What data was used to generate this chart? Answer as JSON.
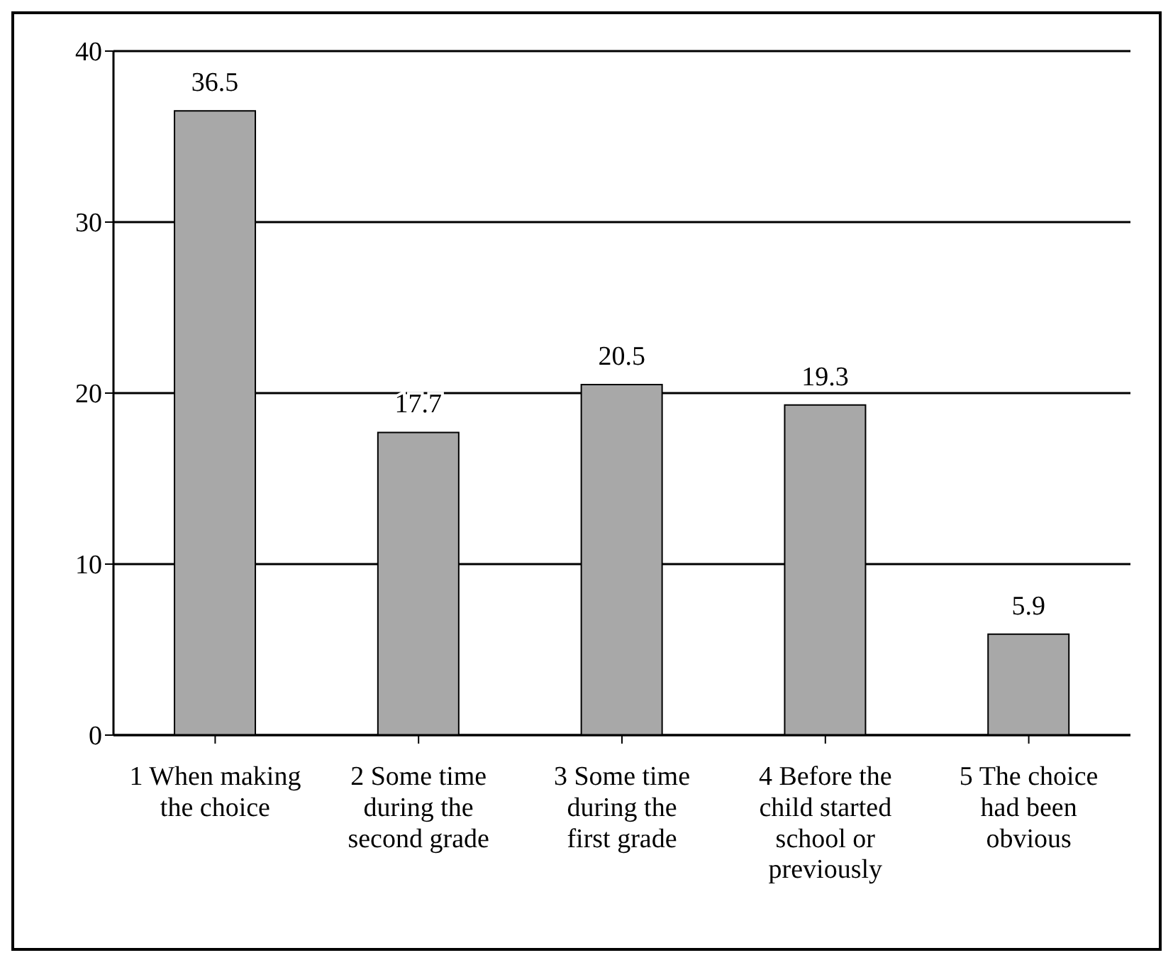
{
  "chart_data": {
    "type": "bar",
    "categories": [
      "1 When making the choice",
      "2 Some time during the second grade",
      "3 Some time during the first grade",
      "4 Before the child started school or previously",
      "5 The choice had been obvious"
    ],
    "values": [
      36.5,
      17.7,
      20.5,
      19.3,
      5.9
    ],
    "color": "#a8a8a8",
    "ylim": [
      0,
      40
    ],
    "yticks": [
      0,
      10,
      20,
      30,
      40
    ],
    "grid": "y",
    "data_labels": true
  }
}
